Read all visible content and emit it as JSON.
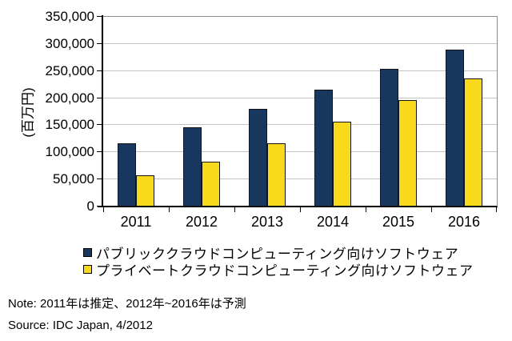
{
  "chart_data": {
    "type": "bar",
    "title": "",
    "xlabel": "",
    "ylabel": "(百万円)",
    "categories": [
      "2011",
      "2012",
      "2013",
      "2014",
      "2015",
      "2016"
    ],
    "series": [
      {
        "name": "パブリッククラウドコンピューティング向けソフトウェア",
        "color": "#17375E",
        "values": [
          117000,
          146000,
          180000,
          216000,
          254000,
          289000
        ]
      },
      {
        "name": "プライベートクラウドコンピューティング向けソフトウェア",
        "color": "#F8D91B",
        "values": [
          57000,
          82000,
          117000,
          157000,
          196000,
          236000
        ]
      }
    ],
    "ylim": [
      0,
      350000
    ],
    "ytick_step": 50000,
    "grid": true,
    "legend_position": "bottom-left"
  },
  "colors": {
    "grid": "#c3c3c3",
    "frame": "#8e8e8e",
    "axis": "#000000"
  },
  "footer": {
    "note": "Note: 2011年は推定、2012年~2016年は予測",
    "source": "Source: IDC Japan, 4/2012"
  }
}
